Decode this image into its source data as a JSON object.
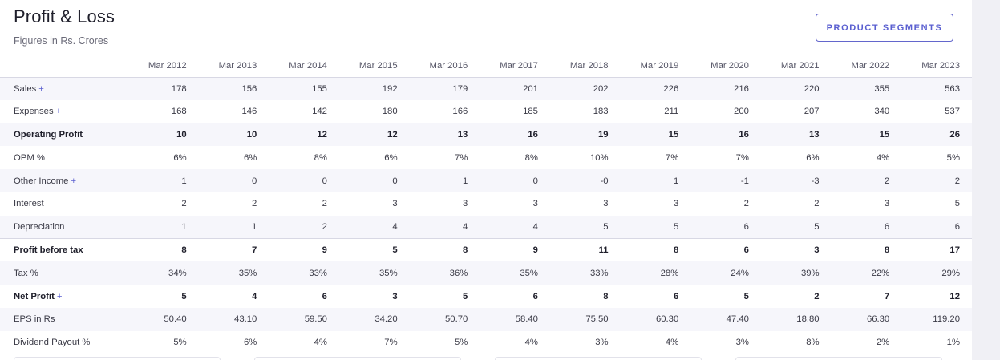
{
  "header": {
    "title": "Profit & Loss",
    "subtitle": "Figures in Rs. Crores",
    "segments_button": "PRODUCT SEGMENTS"
  },
  "table": {
    "columns": [
      "Mar 2012",
      "Mar 2013",
      "Mar 2014",
      "Mar 2015",
      "Mar 2016",
      "Mar 2017",
      "Mar 2018",
      "Mar 2019",
      "Mar 2020",
      "Mar 2021",
      "Mar 2022",
      "Mar 2023"
    ],
    "rows": [
      {
        "label": "Sales",
        "expandable": true,
        "values": [
          "178",
          "156",
          "155",
          "192",
          "179",
          "201",
          "202",
          "226",
          "216",
          "220",
          "355",
          "563"
        ]
      },
      {
        "label": "Expenses",
        "expandable": true,
        "values": [
          "168",
          "146",
          "142",
          "180",
          "166",
          "185",
          "183",
          "211",
          "200",
          "207",
          "340",
          "537"
        ]
      },
      {
        "label": "Operating Profit",
        "expandable": false,
        "values": [
          "10",
          "10",
          "12",
          "12",
          "13",
          "16",
          "19",
          "15",
          "16",
          "13",
          "15",
          "26"
        ]
      },
      {
        "label": "OPM %",
        "expandable": false,
        "values": [
          "6%",
          "6%",
          "8%",
          "6%",
          "7%",
          "8%",
          "10%",
          "7%",
          "7%",
          "6%",
          "4%",
          "5%"
        ]
      },
      {
        "label": "Other Income",
        "expandable": true,
        "values": [
          "1",
          "0",
          "0",
          "0",
          "1",
          "0",
          "-0",
          "1",
          "-1",
          "-3",
          "2",
          "2"
        ]
      },
      {
        "label": "Interest",
        "expandable": false,
        "values": [
          "2",
          "2",
          "2",
          "3",
          "3",
          "3",
          "3",
          "3",
          "2",
          "2",
          "3",
          "5"
        ]
      },
      {
        "label": "Depreciation",
        "expandable": false,
        "values": [
          "1",
          "1",
          "2",
          "4",
          "4",
          "4",
          "5",
          "5",
          "6",
          "5",
          "6",
          "6"
        ]
      },
      {
        "label": "Profit before tax",
        "expandable": false,
        "values": [
          "8",
          "7",
          "9",
          "5",
          "8",
          "9",
          "11",
          "8",
          "6",
          "3",
          "8",
          "17"
        ]
      },
      {
        "label": "Tax %",
        "expandable": false,
        "values": [
          "34%",
          "35%",
          "33%",
          "35%",
          "36%",
          "35%",
          "33%",
          "28%",
          "24%",
          "39%",
          "22%",
          "29%"
        ]
      },
      {
        "label": "Net Profit",
        "expandable": true,
        "values": [
          "5",
          "4",
          "6",
          "3",
          "5",
          "6",
          "8",
          "6",
          "5",
          "2",
          "7",
          "12"
        ]
      },
      {
        "label": "EPS in Rs",
        "expandable": false,
        "values": [
          "50.40",
          "43.10",
          "59.50",
          "34.20",
          "50.70",
          "58.40",
          "75.50",
          "60.30",
          "47.40",
          "18.80",
          "66.30",
          "119.20"
        ]
      },
      {
        "label": "Dividend Payout %",
        "expandable": false,
        "values": [
          "5%",
          "6%",
          "4%",
          "7%",
          "5%",
          "4%",
          "3%",
          "4%",
          "3%",
          "8%",
          "2%",
          "1%"
        ]
      }
    ]
  },
  "colors": {
    "accent": "#5a5fd0",
    "row_shade": "#f6f6fb",
    "text": "#2b2b36"
  }
}
